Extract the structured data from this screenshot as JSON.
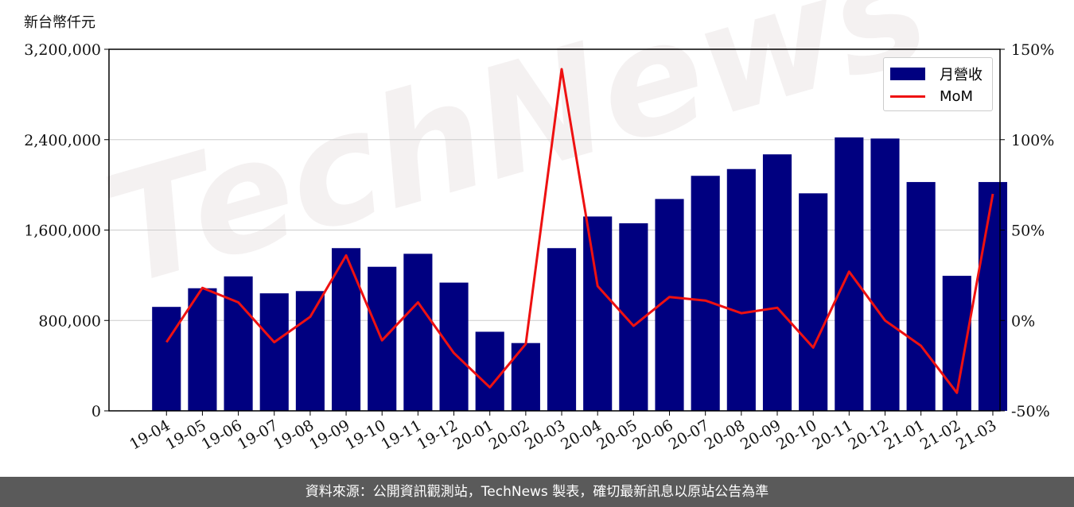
{
  "unit_label": "新台幣仟元",
  "watermark": "TechNews",
  "footer": "資料來源：公開資訊觀測站，TechNews 製表，確切最新訊息以原站公告為準",
  "colors": {
    "bar": "#000080",
    "line": "#ee1111",
    "footer_bg": "#5a5a5a"
  },
  "chart_data": {
    "type": "bar",
    "categories": [
      "19-04",
      "19-05",
      "19-06",
      "19-07",
      "19-08",
      "19-09",
      "19-10",
      "19-11",
      "19-12",
      "20-01",
      "20-02",
      "20-03",
      "20-04",
      "20-05",
      "20-06",
      "20-07",
      "20-08",
      "20-09",
      "20-10",
      "20-11",
      "20-12",
      "21-01",
      "21-02",
      "21-03"
    ],
    "series": [
      {
        "name": "月營收",
        "type": "bar",
        "axis": "left",
        "values": [
          920000,
          1085000,
          1190000,
          1040000,
          1060000,
          1440000,
          1275000,
          1390000,
          1135000,
          700000,
          600000,
          1440000,
          1720000,
          1660000,
          1875000,
          2080000,
          2140000,
          2270000,
          1925000,
          2420000,
          2410000,
          2025000,
          1195000,
          2025000
        ]
      },
      {
        "name": "MoM",
        "type": "line",
        "axis": "right",
        "values": [
          -12,
          18,
          10,
          -12,
          2,
          36,
          -11,
          10,
          -18,
          -37,
          -13,
          139,
          19,
          -3,
          13,
          11,
          4,
          7,
          -15,
          27,
          0,
          -14,
          -40,
          70
        ]
      }
    ],
    "left_axis": {
      "min": 0,
      "max": 3200000,
      "ticks": [
        0,
        800000,
        1600000,
        2400000,
        3200000
      ],
      "tick_labels": [
        "0",
        "800,000",
        "1,600,000",
        "2,400,000",
        "3,200,000"
      ]
    },
    "right_axis": {
      "min": -50,
      "max": 150,
      "ticks": [
        -50,
        0,
        50,
        100,
        150
      ],
      "tick_labels": [
        "-50%",
        "0%",
        "50%",
        "100%",
        "150%"
      ]
    },
    "grid": "horizontal",
    "legend_position": "top-right"
  }
}
